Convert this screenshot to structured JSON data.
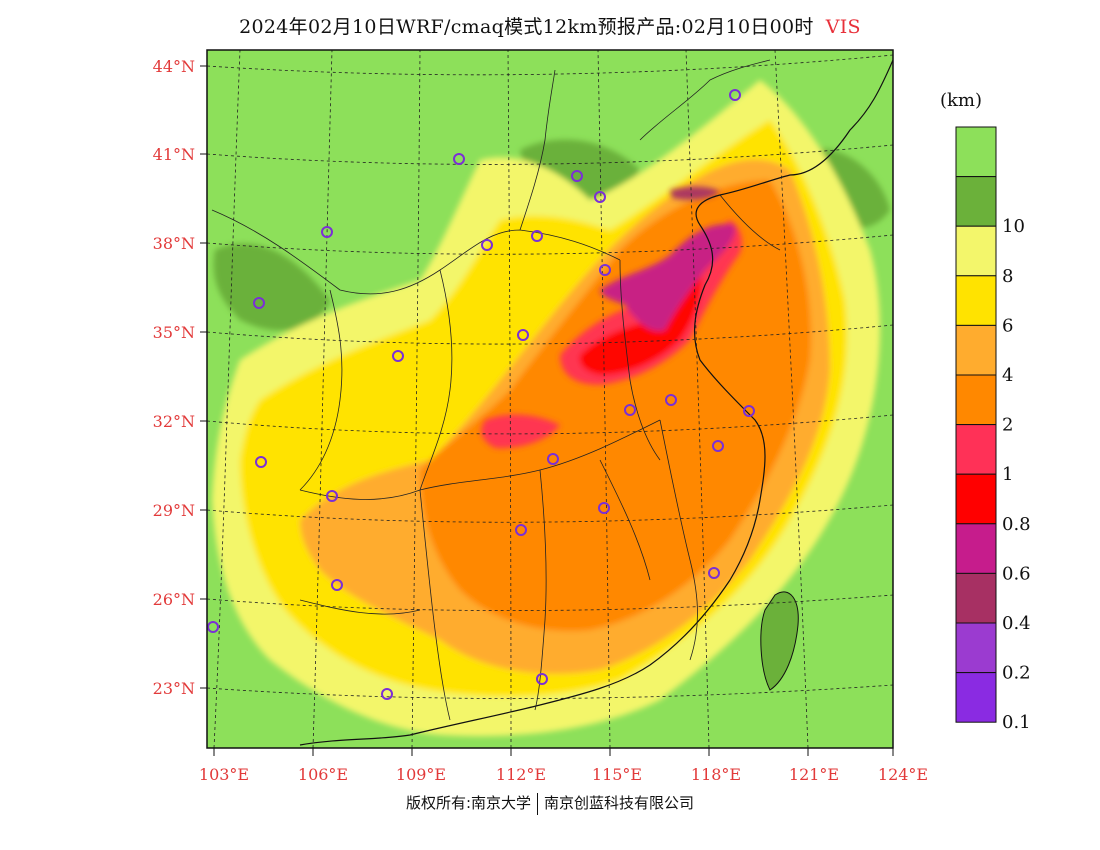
{
  "title": {
    "main": "2024年02月10日WRF/cmaq模式12km预报产品:02月10日00时",
    "variable": "VIS"
  },
  "legend": {
    "unit": "(km)",
    "levels": [
      {
        "label": "",
        "color": "#8de05a"
      },
      {
        "label": "10",
        "color": "#6bb13a"
      },
      {
        "label": "8",
        "color": "#f3f66b"
      },
      {
        "label": "6",
        "color": "#ffe300"
      },
      {
        "label": "4",
        "color": "#ffac2e"
      },
      {
        "label": "2",
        "color": "#ff8800"
      },
      {
        "label": "1",
        "color": "#ff3157"
      },
      {
        "label": "0.8",
        "color": "#ff0000"
      },
      {
        "label": "0.6",
        "color": "#c61c8c"
      },
      {
        "label": "0.4",
        "color": "#a73063"
      },
      {
        "label": "0.2",
        "color": "#9b3bd0"
      },
      {
        "label": "0.1",
        "color": "#8a2be2"
      }
    ]
  },
  "axes": {
    "lat_labels": [
      "44°N",
      "41°N",
      "38°N",
      "35°N",
      "32°N",
      "29°N",
      "26°N",
      "23°N"
    ],
    "lon_labels": [
      "103°E",
      "106°E",
      "109°E",
      "112°E",
      "115°E",
      "118°E",
      "121°E",
      "124°E"
    ]
  },
  "footer": {
    "left": "版权所有:南京大学",
    "right": "南京创蓝科技有限公司"
  }
}
